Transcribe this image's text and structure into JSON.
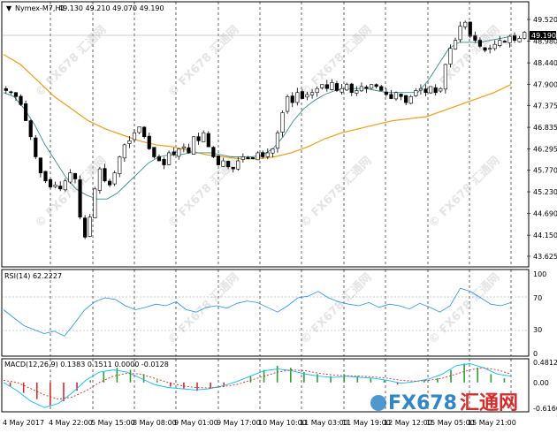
{
  "symbol_header": "Nymex-M7,H1",
  "ohlc": "49.130 49.210 49.070 49.190",
  "current_price_tag": "49.190",
  "watermark_text": "© FX678 汇通网",
  "brand": {
    "main": "FX678",
    "sub": "汇通网",
    "color_main": "#2f86c8",
    "color_sub": "#d62b2b"
  },
  "colors": {
    "candle": "#000000",
    "ma_fast": "#2f8f8f",
    "ma_slow": "#f39c12",
    "rsi_line": "#1e90ff",
    "macd_line": "#00bfff",
    "signal_line": "#d62b2b",
    "hist_pos": "#2ca02c",
    "hist_neg": "#d62b2b",
    "grid": "#000000",
    "panel_border": "#000000"
  },
  "price_axis_labels": [
    "49.520",
    "48.980",
    "48.440",
    "47.900",
    "47.375",
    "46.835",
    "46.295",
    "45.770",
    "45.230",
    "44.690",
    "44.150",
    "43.625"
  ],
  "rsi_panel": {
    "title": "RSI(14) 62.2227",
    "levels": [
      "100",
      "70",
      "30",
      "0"
    ]
  },
  "macd_panel": {
    "title": "MACD(12,26,9) 0.1383 0.1511 0.0000 -0.0128",
    "levels": [
      "0.4812",
      "0.00",
      "-0.6166"
    ]
  },
  "time_labels": [
    "4 May 2017",
    "4 May 22:00",
    "5 May 15:00",
    "8 May 08:00",
    "9 May 01:00",
    "9 May 17:00",
    "10 May 10:00",
    "11 May 03:00",
    "11 May 19:00",
    "12 May 12:00",
    "15 May 05:00",
    "15 May 21:00"
  ],
  "chart_data": {
    "type": "candlestick",
    "title": "Nymex-M7,H1",
    "ylim": [
      43.625,
      49.52
    ],
    "current": 49.19,
    "price_path": [
      47.75,
      47.7,
      47.6,
      47.4,
      47.0,
      46.6,
      46.1,
      45.7,
      45.5,
      45.35,
      45.4,
      45.3,
      45.5,
      45.7,
      45.55,
      44.6,
      44.1,
      44.6,
      45.3,
      45.8,
      45.5,
      45.4,
      45.7,
      46.1,
      46.4,
      46.5,
      46.7,
      46.85,
      46.6,
      46.3,
      46.1,
      46.0,
      45.9,
      46.2,
      46.15,
      46.3,
      46.35,
      46.2,
      46.6,
      46.5,
      46.7,
      46.35,
      46.1,
      45.9,
      46.0,
      45.85,
      45.8,
      46.0,
      46.1,
      46.05,
      46.05,
      46.2,
      46.1,
      46.2,
      46.3,
      46.7,
      47.2,
      47.6,
      47.45,
      47.7,
      47.55,
      47.65,
      47.7,
      47.8,
      47.9,
      47.8,
      47.95,
      47.75,
      47.8,
      47.9,
      47.7,
      47.75,
      47.85,
      47.8,
      47.9,
      47.85,
      47.75,
      47.65,
      47.55,
      47.7,
      47.6,
      47.45,
      47.6,
      47.75,
      47.8,
      47.7,
      47.85,
      47.7,
      47.8,
      48.4,
      48.8,
      49.0,
      49.35,
      49.45,
      49.1,
      49.0,
      48.85,
      48.75,
      48.8,
      48.9,
      49.0,
      48.95,
      49.1,
      49.0,
      49.05,
      49.2
    ],
    "ma_fast": [
      47.7,
      47.6,
      47.3,
      46.9,
      46.4,
      46.0,
      45.6,
      45.3,
      45.15,
      45.05,
      45.05,
      45.2,
      45.45,
      45.7,
      45.95,
      46.1,
      46.15,
      46.15,
      46.2,
      46.2,
      46.2,
      46.15,
      46.1,
      46.1,
      46.1,
      46.15,
      46.3,
      46.6,
      47.0,
      47.3,
      47.5,
      47.65,
      47.75,
      47.8,
      47.8,
      47.8,
      47.75,
      47.7,
      47.7,
      47.7,
      47.7,
      48.0,
      48.4,
      48.8,
      48.95,
      48.95,
      48.95,
      49.0,
      49.05,
      49.1
    ],
    "ma_slow": [
      48.65,
      48.4,
      48.0,
      47.6,
      47.3,
      47.0,
      46.8,
      46.65,
      46.5,
      46.4,
      46.35,
      46.25,
      46.15,
      46.1,
      46.05,
      46.05,
      46.1,
      46.2,
      46.35,
      46.55,
      46.7,
      46.8,
      46.9,
      47.0,
      47.05,
      47.1,
      47.25,
      47.4,
      47.55,
      47.7,
      47.9
    ],
    "rsi": [
      55,
      45,
      35,
      30,
      25,
      28,
      22,
      38,
      55,
      65,
      70,
      68,
      60,
      55,
      58,
      62,
      60,
      65,
      55,
      52,
      58,
      60,
      57,
      63,
      66,
      64,
      58,
      52,
      60,
      70,
      72,
      78,
      70,
      65,
      62,
      60,
      64,
      58,
      62,
      60,
      56,
      63,
      58,
      52,
      60,
      82,
      78,
      70,
      62,
      60,
      64
    ],
    "macd_hist": [
      -0.1,
      -0.25,
      -0.4,
      -0.55,
      -0.45,
      -0.2,
      0.05,
      0.25,
      0.35,
      0.3,
      0.2,
      0.05,
      -0.1,
      -0.15,
      -0.2,
      -0.15,
      -0.1,
      0.0,
      0.15,
      0.3,
      0.4,
      0.35,
      0.25,
      0.2,
      0.15,
      0.2,
      0.15,
      0.1,
      0.05,
      -0.05,
      0.0,
      0.05,
      0.1,
      0.3,
      0.45,
      0.35,
      0.2,
      0.1
    ],
    "macd_line": [
      0.0,
      -0.2,
      -0.45,
      -0.6,
      -0.5,
      -0.25,
      0.05,
      0.25,
      0.3,
      0.25,
      0.1,
      -0.05,
      -0.12,
      -0.15,
      -0.18,
      -0.15,
      -0.08,
      0.02,
      0.15,
      0.28,
      0.32,
      0.28,
      0.2,
      0.15,
      0.12,
      0.15,
      0.12,
      0.1,
      0.05,
      -0.02,
      0.02,
      0.08,
      0.2,
      0.4,
      0.45,
      0.35,
      0.2,
      0.15
    ],
    "signal_line": [
      0.05,
      0.0,
      -0.15,
      -0.3,
      -0.4,
      -0.35,
      -0.2,
      0.0,
      0.15,
      0.22,
      0.2,
      0.1,
      0.0,
      -0.08,
      -0.12,
      -0.13,
      -0.1,
      -0.05,
      0.05,
      0.15,
      0.25,
      0.3,
      0.28,
      0.22,
      0.18,
      0.16,
      0.15,
      0.13,
      0.1,
      0.05,
      0.03,
      0.05,
      0.1,
      0.2,
      0.3,
      0.35,
      0.3,
      0.2
    ]
  }
}
